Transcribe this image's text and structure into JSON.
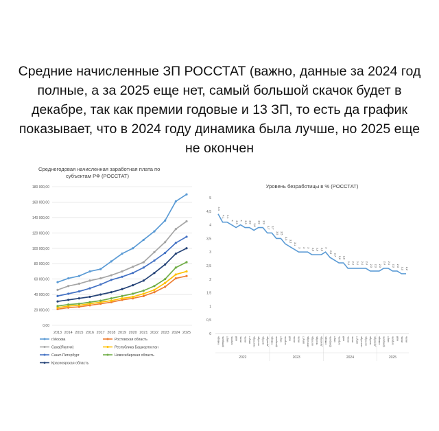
{
  "headline": "Средние начисленные ЗП РОССТАТ (важно, данные за 2024 год полные, а за 2025 еще нет, самый большой скачок будет в декабре, так как премии годовые и 13 ЗП, то есть да график показывает, что в 2024 году динамика была лучше, но 2025 еще не окончен",
  "chart_data": [
    {
      "type": "line",
      "title": "Среднегодовая начисленная заработная плата по субъектам РФ (РОССТАТ)",
      "xlabel": "",
      "ylabel": "",
      "x": [
        "2013",
        "2014",
        "2015",
        "2016",
        "2017",
        "2018",
        "2019",
        "2020",
        "2021",
        "2022",
        "2023",
        "2024",
        "2025"
      ],
      "ylim": [
        0,
        180000
      ],
      "yticks": [
        "0,00",
        "20 000,00",
        "40 000,00",
        "60 000,00",
        "80 000,00",
        "100 000,00",
        "120 000,00",
        "140 000,00",
        "160 000,00",
        "180 000,00"
      ],
      "grid": true,
      "legend_position": "bottom",
      "series": [
        {
          "name": "г.Москва",
          "color": "#5b9bd5",
          "values": [
            56000,
            61000,
            64000,
            70000,
            73000,
            83000,
            93000,
            100000,
            111000,
            122000,
            136000,
            161000,
            170000
          ]
        },
        {
          "name": "Ростовская область",
          "color": "#ed7d31",
          "values": [
            21000,
            23000,
            24000,
            26000,
            28000,
            30000,
            33000,
            35000,
            38000,
            43000,
            50000,
            61000,
            64000
          ]
        },
        {
          "name": "Саха(Якутия)",
          "color": "#a5a5a5",
          "values": [
            46000,
            51000,
            54000,
            58000,
            61000,
            65000,
            70000,
            76000,
            82000,
            95000,
            108000,
            125000,
            135000
          ]
        },
        {
          "name": "Республика Башкортостан",
          "color": "#ffc000",
          "values": [
            23000,
            25000,
            26000,
            28000,
            30000,
            32000,
            35000,
            37000,
            41000,
            46000,
            55000,
            66000,
            70000
          ]
        },
        {
          "name": "Санкт-Петербург",
          "color": "#4472c4",
          "values": [
            38000,
            41000,
            44000,
            48000,
            53000,
            59000,
            63000,
            68000,
            75000,
            84000,
            94000,
            107000,
            115000
          ]
        },
        {
          "name": "Новосибирская область",
          "color": "#70ad47",
          "values": [
            25000,
            27000,
            28000,
            30000,
            32000,
            35000,
            38000,
            41000,
            45000,
            51000,
            60000,
            75000,
            82000
          ]
        },
        {
          "name": "Красноярская область",
          "color": "#264478",
          "values": [
            31000,
            33000,
            35000,
            37000,
            40000,
            43000,
            47000,
            52000,
            58000,
            68000,
            79000,
            93000,
            100000
          ]
        }
      ]
    },
    {
      "type": "line",
      "title": "Уровень безработицы в % (РОССТАТ)",
      "xlabel": "",
      "ylabel": "",
      "ylim": [
        0,
        5
      ],
      "yticks": [
        "0",
        "0,5",
        "1",
        "1,5",
        "2",
        "2,5",
        "3",
        "3,5",
        "4",
        "4,5",
        "5"
      ],
      "grid": false,
      "years": [
        "2022",
        "2023",
        "2024",
        "2025"
      ],
      "months": [
        "январь",
        "февраль",
        "март",
        "апрель",
        "май",
        "июнь",
        "июль",
        "август",
        "сентябрь",
        "октябрь",
        "ноябрь",
        "декабрь"
      ],
      "series": [
        {
          "name": "",
          "color": "#5b9bd5",
          "values": [
            4.4,
            4.1,
            4.1,
            4.0,
            3.9,
            4.0,
            3.9,
            3.9,
            3.8,
            3.9,
            3.9,
            3.7,
            3.7,
            3.5,
            3.5,
            3.3,
            3.2,
            3.1,
            3.0,
            3.0,
            3.0,
            2.9,
            2.9,
            2.9,
            3.0,
            2.8,
            2.7,
            2.6,
            2.6,
            2.4,
            2.4,
            2.4,
            2.4,
            2.4,
            2.3,
            2.3,
            2.3,
            2.4,
            2.4,
            2.3,
            2.3,
            2.2,
            2.2
          ]
        }
      ]
    }
  ]
}
